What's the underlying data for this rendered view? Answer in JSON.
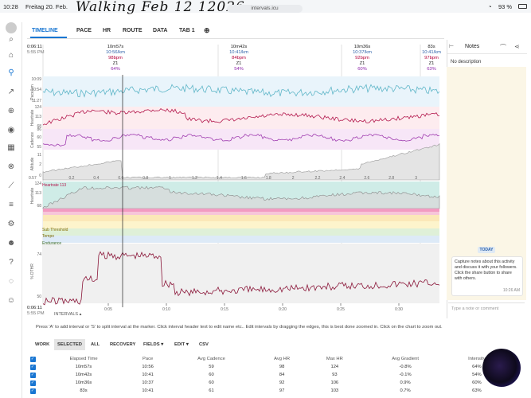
{
  "status": {
    "time": "10:28",
    "date": "Freitag 20. Feb.",
    "battery": "93 %"
  },
  "handwritten": "Walking   Feb 12 12026",
  "url": "intervals.icu",
  "tabs": [
    "TIMELINE",
    "PACE",
    "HR",
    "ROUTE",
    "DATA",
    "TAB 1"
  ],
  "add_tab": "⊕",
  "start": {
    "time": "0:06:11",
    "clock": "5:55 PM"
  },
  "end": {
    "time": "0:06:11",
    "clock": "5:55 PM"
  },
  "intervals_label": "INTERVALS",
  "interval_headers": [
    {
      "dur": "10m57s",
      "pace": "10:56/km",
      "hr": "98bpm",
      "zone": "Z1",
      "int": "64%"
    },
    {
      "dur": "10m42s",
      "pace": "10:41/km",
      "hr": "84bpm",
      "zone": "Z1",
      "int": "54%"
    },
    {
      "dur": "10m36s",
      "pace": "10:37/km",
      "hr": "92bpm",
      "zone": "Z1",
      "int": "60%"
    },
    {
      "dur": "83s",
      "pace": "10:41/km",
      "hr": "97bpm",
      "zone": "Z1",
      "int": "63%"
    }
  ],
  "panel_labels": {
    "pace": "Pace/km",
    "heartrate": "Heartrate",
    "cadence": "Cadence",
    "altitude": "Altitude",
    "heartrate2": "Heartrate",
    "dthr": "% DTHR"
  },
  "pace_ticks": [
    "10:09",
    "10:54",
    "11:27"
  ],
  "hr_ticks": [
    "124",
    "113",
    "68"
  ],
  "cad_ticks": [
    "86",
    "60",
    "55"
  ],
  "alt_ticks": [
    "11",
    "2",
    "0"
  ],
  "alt_x_ticks": [
    "0.2",
    "0.4",
    "0.6",
    "0.8",
    "1",
    "1.2",
    "1.4",
    "1.6",
    "1.8",
    "2",
    "2.2",
    "2.4",
    "2.6",
    "2.8",
    "3"
  ],
  "alt_start": "0.57",
  "hr2_ticks": [
    "124",
    "113",
    "68"
  ],
  "hr2_annotation": "Heartrate 113",
  "zones": [
    "Sub Threshold",
    "Tempo",
    "Endurance"
  ],
  "dthr_ticks": [
    "74",
    "50"
  ],
  "time_ticks": [
    "0:05",
    "0:10",
    "0:15",
    "0:20",
    "0:25",
    "0:30"
  ],
  "notes": {
    "title": "Notes",
    "no_description": "No description",
    "today": "TODAY",
    "bubble": "Capture notes about this activity and discuss it with your followers. Click the share button to share with others.",
    "bubble_time": "10:26 AM",
    "reply_placeholder": "Type a note or comment"
  },
  "help": "Press 'A' to add interval or 'S' to split interval at the marker. Click interval header text to edit name etc.. Edit intervals by dragging the edges, this is best done zoomed in. Click on the chart to zoom out.",
  "toolbar": [
    "WORK",
    "SELECTED",
    "ALL",
    "RECOVERY",
    "FIELDS ▾",
    "EDIT ▾",
    "CSV"
  ],
  "table": {
    "headers": [
      "Elapsed Time",
      "Pace",
      "Avg Cadence",
      "Avg HR",
      "Max HR",
      "Avg Gradient",
      "Intensity"
    ],
    "rows": [
      [
        "10m57s",
        "10:56",
        "59",
        "98",
        "124",
        "-0.8%",
        "64%"
      ],
      [
        "10m42s",
        "10:41",
        "60",
        "84",
        "93",
        "-0.1%",
        "54%"
      ],
      [
        "10m36s",
        "10:37",
        "60",
        "92",
        "106",
        "0.9%",
        "60%"
      ],
      [
        "83s",
        "10:41",
        "61",
        "97",
        "103",
        "0.7%",
        "63%"
      ]
    ]
  }
}
